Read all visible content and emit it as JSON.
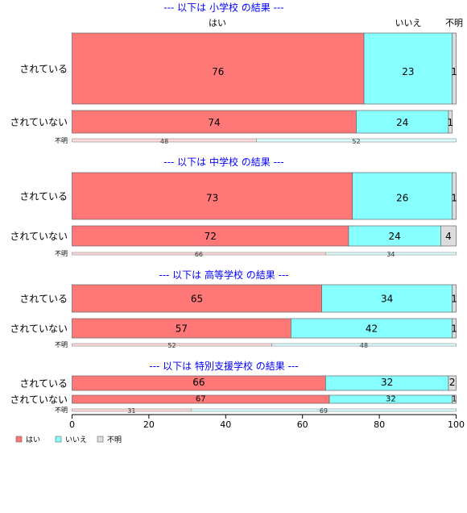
{
  "chart_data": {
    "type": "bar",
    "orientation": "horizontal-stacked-percent",
    "column_headers": [
      "はい",
      "いいえ",
      "不明"
    ],
    "xlim": [
      0,
      100
    ],
    "xticks": [
      0,
      20,
      40,
      60,
      80,
      100
    ],
    "colors": {
      "yes": "#ff7777",
      "no": "#88ffff",
      "unknown": "#dddddd",
      "title": "#0000ff"
    },
    "legend": {
      "position": "bottom-left",
      "items": [
        "はい",
        "いいえ",
        "不明"
      ]
    },
    "unknown_label": "不明",
    "groups": [
      {
        "title": "--- 以下は 小学校 の結果 ---",
        "rows": [
          {
            "label": "されている",
            "values": [
              76,
              23,
              1
            ]
          },
          {
            "label": "されていない",
            "values": [
              74,
              24,
              1
            ]
          }
        ],
        "unknown_row": [
          48,
          52
        ]
      },
      {
        "title": "--- 以下は 中学校 の結果 ---",
        "rows": [
          {
            "label": "されている",
            "values": [
              73,
              26,
              1
            ]
          },
          {
            "label": "されていない",
            "values": [
              72,
              24,
              4
            ]
          }
        ],
        "unknown_row": [
          66,
          34
        ]
      },
      {
        "title": "--- 以下は 高等学校 の結果 ---",
        "rows": [
          {
            "label": "されている",
            "values": [
              65,
              34,
              1
            ]
          },
          {
            "label": "されていない",
            "values": [
              57,
              42,
              1
            ]
          }
        ],
        "unknown_row": [
          52,
          48
        ]
      },
      {
        "title": "--- 以下は 特別支援学校 の結果 ---",
        "rows": [
          {
            "label": "されている",
            "values": [
              66,
              32,
              2
            ]
          },
          {
            "label": "されていない",
            "values": [
              67,
              32,
              1
            ]
          }
        ],
        "unknown_row": [
          31,
          69
        ]
      }
    ]
  }
}
